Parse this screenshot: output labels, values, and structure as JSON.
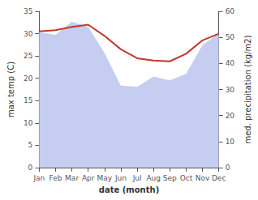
{
  "chart_data": {
    "type": "line",
    "xlabel": "date (month)",
    "ylabel": "max temp (C)",
    "y2label": "med. precipitation (kg/m2)",
    "categories": [
      "Jan",
      "Feb",
      "Mar",
      "Apr",
      "May",
      "Jun",
      "Jul",
      "Aug",
      "Sep",
      "Oct",
      "Nov",
      "Dec"
    ],
    "series": [
      {
        "type": "area",
        "axis": "y2",
        "color": "#c5cdf0",
        "values": [
          52.0,
          51.0,
          56.0,
          54.0,
          44.0,
          31.5,
          31.0,
          35.0,
          33.5,
          36.0,
          47.0,
          51.5
        ]
      },
      {
        "type": "line",
        "color": "#c0392b",
        "values": [
          30.5,
          30.8,
          31.5,
          32.0,
          29.5,
          26.5,
          24.5,
          24.0,
          23.8,
          25.5,
          28.5,
          30.0
        ]
      }
    ],
    "ylim": [
      0,
      35
    ],
    "yticks": [
      0,
      5,
      10,
      15,
      20,
      25,
      30,
      35
    ],
    "y2lim": [
      0,
      60
    ],
    "y2ticks": [
      0,
      10,
      20,
      30,
      40,
      50,
      60
    ],
    "grid": false
  }
}
